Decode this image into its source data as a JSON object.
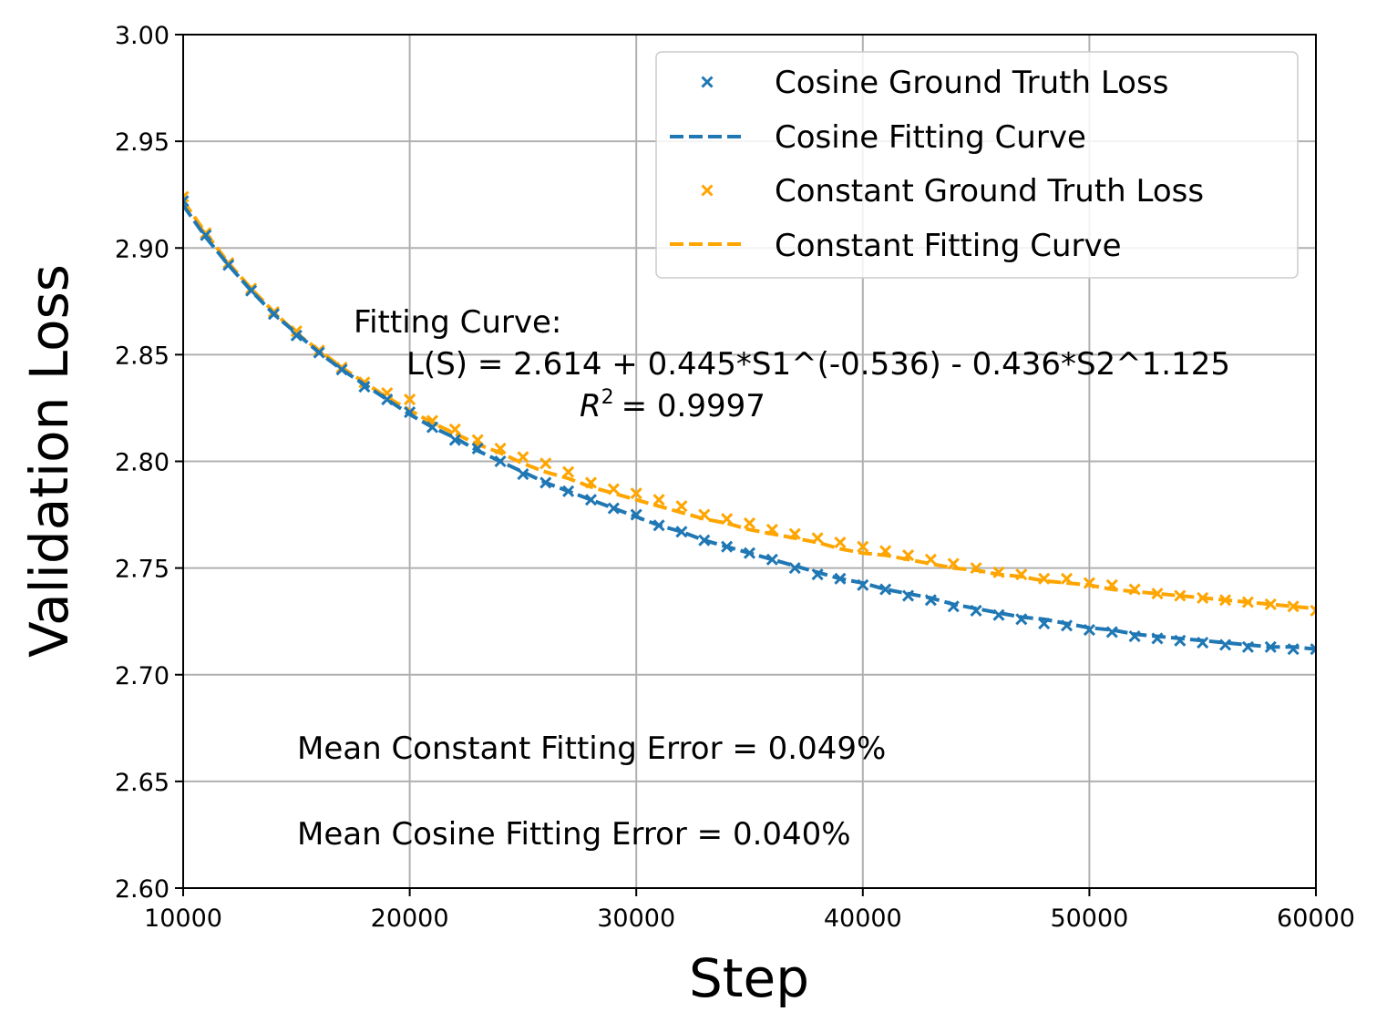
{
  "chart_data": {
    "type": "line",
    "xlabel": "Step",
    "ylabel": "Validation Loss",
    "xlim": [
      10000,
      60000
    ],
    "ylim": [
      2.6,
      3.0
    ],
    "xticks": [
      10000,
      20000,
      30000,
      40000,
      50000,
      60000
    ],
    "xtick_labels": [
      "10000",
      "20000",
      "30000",
      "40000",
      "50000",
      "60000"
    ],
    "yticks": [
      2.6,
      2.65,
      2.7,
      2.75,
      2.8,
      2.85,
      2.9,
      2.95,
      3.0
    ],
    "ytick_labels": [
      "2.60",
      "2.65",
      "2.70",
      "2.75",
      "2.80",
      "2.85",
      "2.90",
      "2.95",
      "3.00"
    ],
    "grid": true,
    "legend_position": "top-right",
    "x": [
      10000,
      11000,
      12000,
      13000,
      14000,
      15000,
      16000,
      17000,
      18000,
      19000,
      20000,
      21000,
      22000,
      23000,
      24000,
      25000,
      26000,
      27000,
      28000,
      29000,
      30000,
      31000,
      32000,
      33000,
      34000,
      35000,
      36000,
      37000,
      38000,
      39000,
      40000,
      41000,
      42000,
      43000,
      44000,
      45000,
      46000,
      47000,
      48000,
      49000,
      50000,
      51000,
      52000,
      53000,
      54000,
      55000,
      56000,
      57000,
      58000,
      59000,
      60000
    ],
    "series": [
      {
        "name": "Cosine Ground Truth Loss",
        "style": "marker-x",
        "color": "#1f77b4",
        "values": [
          2.922,
          2.906,
          2.892,
          2.88,
          2.869,
          2.859,
          2.851,
          2.843,
          2.835,
          2.829,
          2.823,
          2.816,
          2.81,
          2.806,
          2.8,
          2.794,
          2.79,
          2.786,
          2.782,
          2.778,
          2.775,
          2.77,
          2.767,
          2.763,
          2.76,
          2.757,
          2.754,
          2.75,
          2.747,
          2.745,
          2.742,
          2.74,
          2.737,
          2.735,
          2.732,
          2.73,
          2.728,
          2.726,
          2.724,
          2.723,
          2.721,
          2.72,
          2.718,
          2.717,
          2.716,
          2.715,
          2.714,
          2.713,
          2.713,
          2.712,
          2.712
        ]
      },
      {
        "name": "Cosine Fitting Curve",
        "style": "dashed-line",
        "color": "#1f77b4",
        "values": [
          2.92,
          2.905,
          2.892,
          2.88,
          2.869,
          2.86,
          2.851,
          2.843,
          2.836,
          2.829,
          2.822,
          2.816,
          2.811,
          2.805,
          2.8,
          2.795,
          2.79,
          2.786,
          2.782,
          2.778,
          2.774,
          2.77,
          2.767,
          2.763,
          2.76,
          2.757,
          2.754,
          2.751,
          2.748,
          2.745,
          2.743,
          2.74,
          2.738,
          2.736,
          2.733,
          2.731,
          2.729,
          2.727,
          2.726,
          2.724,
          2.722,
          2.721,
          2.719,
          2.718,
          2.717,
          2.716,
          2.715,
          2.714,
          2.713,
          2.713,
          2.712
        ]
      },
      {
        "name": "Constant Ground Truth Loss",
        "style": "marker-x",
        "color": "#ffa500",
        "values": [
          2.924,
          2.907,
          2.893,
          2.881,
          2.87,
          2.861,
          2.852,
          2.844,
          2.837,
          2.832,
          2.829,
          2.819,
          2.815,
          2.81,
          2.806,
          2.802,
          2.799,
          2.795,
          2.79,
          2.787,
          2.785,
          2.782,
          2.779,
          2.775,
          2.773,
          2.771,
          2.768,
          2.766,
          2.764,
          2.762,
          2.76,
          2.758,
          2.756,
          2.754,
          2.752,
          2.75,
          2.748,
          2.747,
          2.745,
          2.745,
          2.743,
          2.742,
          2.74,
          2.738,
          2.737,
          2.736,
          2.735,
          2.734,
          2.733,
          2.732,
          2.73
        ]
      },
      {
        "name": "Constant Fitting Curve",
        "style": "dashed-line",
        "color": "#ffa500",
        "values": [
          2.922,
          2.907,
          2.893,
          2.881,
          2.87,
          2.86,
          2.852,
          2.844,
          2.837,
          2.83,
          2.824,
          2.818,
          2.813,
          2.808,
          2.804,
          2.799,
          2.795,
          2.792,
          2.788,
          2.785,
          2.782,
          2.779,
          2.776,
          2.773,
          2.771,
          2.768,
          2.766,
          2.764,
          2.762,
          2.759,
          2.757,
          2.756,
          2.754,
          2.752,
          2.75,
          2.749,
          2.747,
          2.746,
          2.744,
          2.743,
          2.742,
          2.74,
          2.739,
          2.738,
          2.737,
          2.736,
          2.735,
          2.734,
          2.733,
          2.732,
          2.731
        ]
      }
    ],
    "annotations": {
      "fitting_title": "Fitting Curve:",
      "formula": "L(S) = 2.614 + 0.445*S1^(-0.536) - 0.436*S2^1.125",
      "r2_symbol": "R",
      "r2_exponent": "2",
      "r2_value": "= 0.9997",
      "constant_error": "Mean Constant Fitting Error = 0.049%",
      "cosine_error": "Mean Cosine Fitting Error = 0.040%"
    }
  }
}
